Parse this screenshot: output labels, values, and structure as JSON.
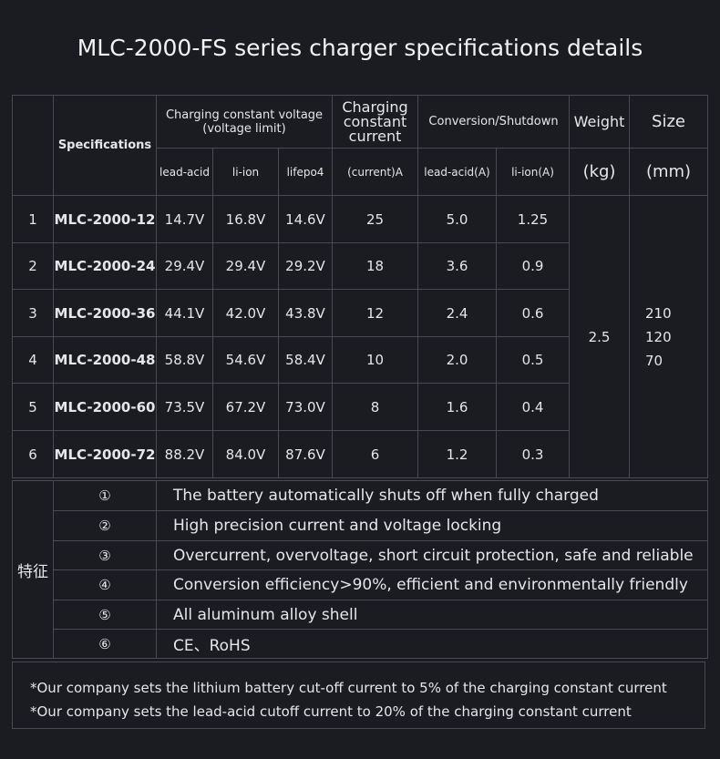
{
  "title": "MLC-2000-FS series charger specifications details",
  "table": {
    "header": {
      "specifications": "Specifications",
      "charging_voltage_line1": "Charging constant voltage",
      "charging_voltage_line2": "(voltage limit)",
      "lead_acid": "lead-acid",
      "li_ion": "li-ion",
      "lifepo4": "lifepo4",
      "charging_current_line1": "Charging",
      "charging_current_line2": "constant",
      "charging_current_line3": "current",
      "current_unit": "(current)A",
      "conversion": "Conversion/Shutdown",
      "conv_lead_acid": "lead-acid(A)",
      "conv_li_ion": "li-ion(A)",
      "weight": "Weight",
      "weight_unit": "(kg)",
      "size": "Size",
      "size_unit": "(mm)"
    },
    "rows": [
      {
        "no": "1",
        "model": "MLC-2000-12",
        "lead_acid": "14.7V",
        "li_ion": "16.8V",
        "lifepo4": "14.6V",
        "current": "25",
        "conv_lead": "5.0",
        "conv_li": "1.25"
      },
      {
        "no": "2",
        "model": "MLC-2000-24",
        "lead_acid": "29.4V",
        "li_ion": "29.4V",
        "lifepo4": "29.2V",
        "current": "18",
        "conv_lead": "3.6",
        "conv_li": "0.9"
      },
      {
        "no": "3",
        "model": "MLC-2000-36",
        "lead_acid": "44.1V",
        "li_ion": "42.0V",
        "lifepo4": "43.8V",
        "current": "12",
        "conv_lead": "2.4",
        "conv_li": "0.6"
      },
      {
        "no": "4",
        "model": "MLC-2000-48",
        "lead_acid": "58.8V",
        "li_ion": "54.6V",
        "lifepo4": "58.4V",
        "current": "10",
        "conv_lead": "2.0",
        "conv_li": "0.5"
      },
      {
        "no": "5",
        "model": "MLC-2000-60",
        "lead_acid": "73.5V",
        "li_ion": "67.2V",
        "lifepo4": "73.0V",
        "current": "8",
        "conv_lead": "1.6",
        "conv_li": "0.4"
      },
      {
        "no": "6",
        "model": "MLC-2000-72",
        "lead_acid": "88.2V",
        "li_ion": "84.0V",
        "lifepo4": "87.6V",
        "current": "6",
        "conv_lead": "1.2",
        "conv_li": "0.3"
      }
    ],
    "weight_value": "2.5",
    "size_values": [
      "210",
      "120",
      "70"
    ]
  },
  "features": {
    "label": "特征",
    "items": [
      {
        "num": "①",
        "text": "The battery automatically shuts off when fully charged"
      },
      {
        "num": "②",
        "text": "High precision current and voltage locking"
      },
      {
        "num": "③",
        "text": "Overcurrent, overvoltage, short circuit protection, safe and reliable"
      },
      {
        "num": "④",
        "text": "Conversion efficiency>90%, efficient and environmentally friendly"
      },
      {
        "num": "⑤",
        "text": "All aluminum alloy shell"
      },
      {
        "num": "⑥",
        "text": "CE、RoHS"
      }
    ]
  },
  "notes": [
    "*Our company sets the lithium battery cut-off current to 5% of the charging constant current",
    "*Our company sets the lead-acid cutoff current to 20% of the charging constant current"
  ]
}
